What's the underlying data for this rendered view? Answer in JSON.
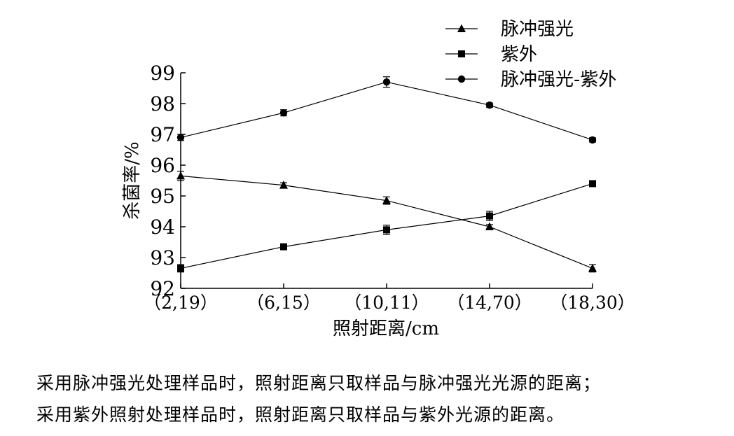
{
  "chart_data": {
    "type": "line",
    "categories": [
      "（2,19）",
      "（6,15）",
      "（10,11）",
      "（14,70）",
      "（18,30）"
    ],
    "xlabel": "照射距离/cm",
    "ylabel": "杀菌率/%",
    "ylim": [
      92,
      99
    ],
    "yticks": [
      92,
      93,
      94,
      95,
      96,
      97,
      98,
      99
    ],
    "grid": false,
    "legend_position": "top-right",
    "series": [
      {
        "name": "脉冲强光",
        "marker": "triangle",
        "values": [
          95.65,
          95.35,
          94.85,
          94.0,
          92.65
        ],
        "errors": [
          0.15,
          0.08,
          0.12,
          0.07,
          0.12
        ]
      },
      {
        "name": "紫外",
        "marker": "square",
        "values": [
          92.65,
          93.35,
          93.9,
          94.35,
          95.4
        ],
        "errors": [
          0.12,
          0.07,
          0.15,
          0.15,
          0.07
        ]
      },
      {
        "name": "脉冲强光-紫外",
        "marker": "circle",
        "values": [
          96.9,
          97.7,
          98.7,
          97.95,
          96.82
        ],
        "errors": [
          0.1,
          0.1,
          0.17,
          0.07,
          0.07
        ]
      }
    ]
  },
  "caption": {
    "line1": "采用脉冲强光处理样品时，照射距离只取样品与脉冲强光光源的距离；",
    "line2": "采用紫外照射处理样品时，照射距离只取样品与紫外光源的距离。"
  }
}
